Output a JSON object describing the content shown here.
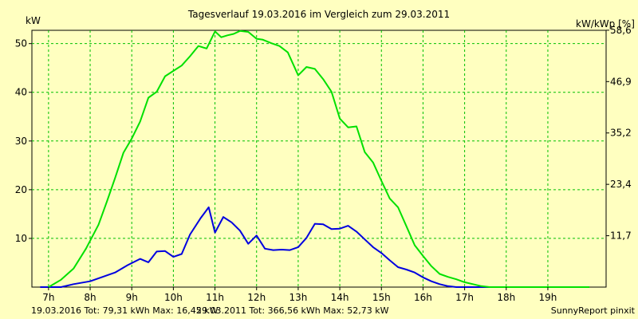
{
  "chart_data": {
    "type": "line",
    "title": "Tagesverlauf 19.03.2016 im Vergleich zum 29.03.2011",
    "ylabel_left": "kW",
    "ylabel_right": "kW/kWp [%]",
    "xlim": [
      6.6,
      20.4
    ],
    "ylim": [
      0,
      52.73
    ],
    "x_ticks": [
      7,
      8,
      9,
      10,
      11,
      12,
      13,
      14,
      15,
      16,
      17,
      18,
      19
    ],
    "x_tick_labels": [
      "7h",
      "8h",
      "9h",
      "10h",
      "11h",
      "12h",
      "13h",
      "14h",
      "15h",
      "16h",
      "17h",
      "18h",
      "19h"
    ],
    "y_ticks_left": [
      10,
      20,
      30,
      40,
      50
    ],
    "y_ticks_left_labels": [
      "10",
      "20",
      "30",
      "40",
      "50"
    ],
    "y_ticks_right": [
      10.55,
      21.1,
      31.65,
      42.2,
      52.75
    ],
    "y_ticks_right_labels": [
      "11,7",
      "23,4",
      "35,2",
      "46,9",
      "58,6"
    ],
    "grid": true,
    "series": [
      {
        "color": "#0000e0",
        "x": [
          6.8,
          7.3,
          7.6,
          8.0,
          8.3,
          8.6,
          8.9,
          9.2,
          9.4,
          9.6,
          9.8,
          10.0,
          10.2,
          10.4,
          10.65,
          10.85,
          11.0,
          11.2,
          11.4,
          11.6,
          11.8,
          12.0,
          12.2,
          12.4,
          12.6,
          12.8,
          13.0,
          13.2,
          13.4,
          13.6,
          13.8,
          14.0,
          14.2,
          14.4,
          14.6,
          14.8,
          15.0,
          15.2,
          15.4,
          15.6,
          15.8,
          16.0,
          16.2,
          16.4,
          16.6,
          16.8,
          17.0,
          17.2,
          17.4,
          17.6,
          17.8,
          18.0,
          18.2,
          18.4,
          18.6
        ],
        "y": [
          0,
          0,
          0.6,
          1.2,
          2.1,
          3.0,
          4.5,
          5.8,
          5.1,
          7.3,
          7.4,
          6.2,
          6.8,
          10.8,
          14.1,
          16.4,
          11.2,
          14.4,
          13.3,
          11.6,
          8.9,
          10.6,
          7.9,
          7.6,
          7.7,
          7.6,
          8.2,
          10.1,
          13.0,
          12.9,
          11.9,
          12.0,
          12.6,
          11.4,
          9.8,
          8.2,
          7.0,
          5.5,
          4.1,
          3.6,
          3.0,
          2.0,
          1.2,
          0.6,
          0.2,
          0,
          0,
          0,
          0,
          0,
          0,
          0,
          0,
          0,
          0
        ]
      },
      {
        "color": "#00e000",
        "x": [
          7.0,
          7.3,
          7.6,
          7.9,
          8.2,
          8.4,
          8.6,
          8.8,
          9.0,
          9.2,
          9.4,
          9.6,
          9.8,
          10.0,
          10.2,
          10.4,
          10.6,
          10.8,
          11.0,
          11.15,
          11.3,
          11.45,
          11.6,
          11.8,
          12.0,
          12.15,
          12.35,
          12.55,
          12.75,
          13.0,
          13.2,
          13.4,
          13.6,
          13.8,
          14.0,
          14.2,
          14.4,
          14.6,
          14.8,
          15.0,
          15.2,
          15.4,
          15.6,
          15.8,
          16.0,
          16.2,
          16.4,
          16.6,
          16.8,
          17.0,
          17.2,
          17.4,
          17.6,
          17.8,
          18.0,
          18.2,
          18.4,
          18.6,
          18.8,
          19.0,
          19.2,
          19.4,
          19.6,
          19.8,
          20.0
        ],
        "y": [
          0,
          1.5,
          3.8,
          7.9,
          12.8,
          17.5,
          22.4,
          27.6,
          30.5,
          34.0,
          38.9,
          40.1,
          43.3,
          44.4,
          45.5,
          47.4,
          49.5,
          49.0,
          52.5,
          51.3,
          51.7,
          52.0,
          52.6,
          52.4,
          51.0,
          50.8,
          50.1,
          49.5,
          48.2,
          43.5,
          45.2,
          44.8,
          42.7,
          40.1,
          34.6,
          32.8,
          33.0,
          27.7,
          25.6,
          21.8,
          18.2,
          16.4,
          12.5,
          8.6,
          6.4,
          4.3,
          2.7,
          2.1,
          1.6,
          1.0,
          0.6,
          0.2,
          0,
          0,
          0,
          0,
          0,
          0,
          0,
          0,
          0,
          0,
          0,
          0,
          0
        ]
      }
    ],
    "footer_left": "19.03.2016 Tot: 79,31 kWh Max: 16,45 kW",
    "footer_middle": "29.03.2011 Tot: 366,56 kWh Max: 52,73 kW",
    "footer_right": "SunnyReport pinxit"
  }
}
